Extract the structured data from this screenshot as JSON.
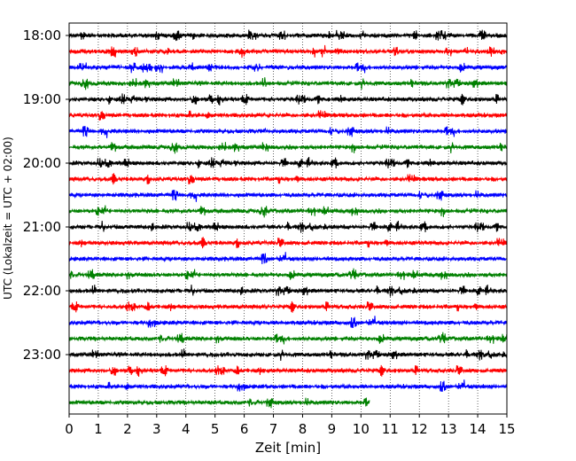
{
  "chart_data": {
    "type": "line",
    "subtype": "helicorder",
    "xlabel": "Zeit  [min]",
    "ylabel": "UTC (Lokalzeit = UTC + 02:00)",
    "xlim": [
      0,
      15
    ],
    "x_ticks": [
      "0",
      "1",
      "2",
      "3",
      "4",
      "5",
      "6",
      "7",
      "8",
      "9",
      "10",
      "11",
      "12",
      "13",
      "14",
      "15"
    ],
    "y_ticks": [
      "18:00",
      "19:00",
      "20:00",
      "21:00",
      "22:00",
      "23:00"
    ],
    "trace_interval_min": 15,
    "grid": "vertical dotted lines at each minute",
    "colors_cycle": [
      "#000000",
      "#ff0000",
      "#0000ff",
      "#008000"
    ],
    "series": [
      {
        "start": "18:00",
        "color": "#000000",
        "end_min": 15
      },
      {
        "start": "18:15",
        "color": "#ff0000",
        "end_min": 15
      },
      {
        "start": "18:30",
        "color": "#0000ff",
        "end_min": 15
      },
      {
        "start": "18:45",
        "color": "#008000",
        "end_min": 15
      },
      {
        "start": "19:00",
        "color": "#000000",
        "end_min": 15
      },
      {
        "start": "19:15",
        "color": "#ff0000",
        "end_min": 15
      },
      {
        "start": "19:30",
        "color": "#0000ff",
        "end_min": 15
      },
      {
        "start": "19:45",
        "color": "#008000",
        "end_min": 15
      },
      {
        "start": "20:00",
        "color": "#000000",
        "end_min": 15
      },
      {
        "start": "20:15",
        "color": "#ff0000",
        "end_min": 15
      },
      {
        "start": "20:30",
        "color": "#0000ff",
        "end_min": 15
      },
      {
        "start": "20:45",
        "color": "#008000",
        "end_min": 15
      },
      {
        "start": "21:00",
        "color": "#000000",
        "end_min": 15
      },
      {
        "start": "21:15",
        "color": "#ff0000",
        "end_min": 15
      },
      {
        "start": "21:30",
        "color": "#0000ff",
        "end_min": 15
      },
      {
        "start": "21:45",
        "color": "#008000",
        "end_min": 15
      },
      {
        "start": "22:00",
        "color": "#000000",
        "end_min": 15
      },
      {
        "start": "22:15",
        "color": "#ff0000",
        "end_min": 15
      },
      {
        "start": "22:30",
        "color": "#0000ff",
        "end_min": 15
      },
      {
        "start": "22:45",
        "color": "#008000",
        "end_min": 15
      },
      {
        "start": "23:00",
        "color": "#000000",
        "end_min": 15
      },
      {
        "start": "23:15",
        "color": "#ff0000",
        "end_min": 15
      },
      {
        "start": "23:30",
        "color": "#0000ff",
        "end_min": 15
      },
      {
        "start": "23:45",
        "color": "#008000",
        "end_min": 10.3
      }
    ]
  }
}
